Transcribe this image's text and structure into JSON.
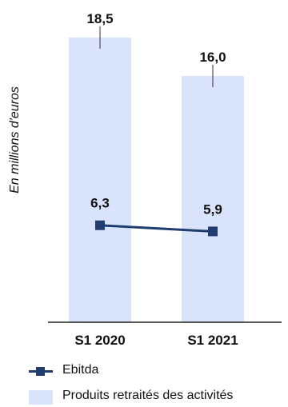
{
  "chart_data": {
    "type": "bar",
    "categories": [
      "S1 2020",
      "S1 2021"
    ],
    "ylabel": "En millions d'euros",
    "ylim": [
      0,
      20
    ],
    "grid": false,
    "legend_position": "bottom-left",
    "series": [
      {
        "name": "Produits retraités des activités",
        "type": "bar",
        "values": [
          18.5,
          16.0
        ],
        "labels": [
          "18,5",
          "16,0"
        ],
        "color": "#d9e3fb"
      },
      {
        "name": "Ebitda",
        "type": "line",
        "values": [
          6.3,
          5.9
        ],
        "labels": [
          "6,3",
          "5,9"
        ],
        "color": "#1f3d6e"
      }
    ]
  }
}
